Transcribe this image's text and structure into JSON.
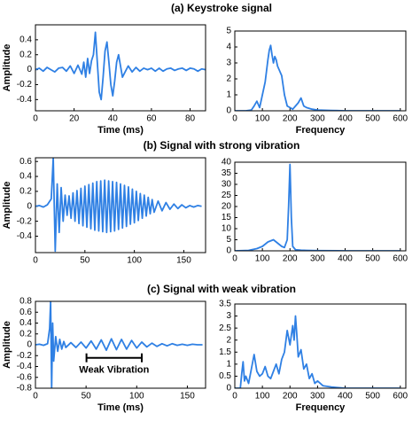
{
  "chart_data": [
    {
      "type": "line",
      "title": "(a) Keystroke signal",
      "xlabel": "Time (ms)",
      "ylabel": "Amplitude",
      "xlim": [
        0,
        88
      ],
      "xticks": [
        0,
        20,
        40,
        60,
        80
      ],
      "ylim": [
        -0.55,
        0.6
      ],
      "yticks": [
        -0.4,
        -0.2,
        0,
        0.2,
        0.4
      ],
      "x": [
        0,
        2,
        4,
        6,
        8,
        10,
        12,
        14,
        16,
        18,
        20,
        22,
        24,
        25,
        26,
        27,
        28,
        29,
        30,
        31,
        32,
        33,
        34,
        35,
        36,
        37,
        38,
        39,
        40,
        41,
        42,
        43,
        44,
        45,
        46,
        48,
        50,
        52,
        54,
        56,
        58,
        60,
        62,
        64,
        66,
        68,
        70,
        72,
        74,
        76,
        78,
        80,
        82,
        84,
        86,
        88
      ],
      "series": [
        {
          "color": "#2f80e4",
          "values": [
            0,
            0.02,
            -0.02,
            0.03,
            0,
            -0.03,
            0.02,
            0.03,
            -0.02,
            0.05,
            -0.05,
            0.06,
            -0.06,
            0.1,
            -0.1,
            0.15,
            -0.05,
            0.12,
            0.2,
            0.5,
            0.1,
            -0.3,
            -0.4,
            -0.1,
            0.25,
            0.37,
            0.1,
            -0.2,
            -0.35,
            -0.15,
            0.1,
            0.2,
            0.05,
            -0.1,
            -0.05,
            0.05,
            -0.03,
            0.03,
            -0.02,
            0.02,
            0,
            0.02,
            -0.02,
            0.02,
            -0.02,
            0.01,
            0.02,
            -0.01,
            0.01,
            0.02,
            -0.01,
            0.02,
            0.01,
            -0.02,
            0.01,
            0
          ]
        }
      ]
    },
    {
      "type": "line",
      "xlabel": "Frequency",
      "xlim": [
        0,
        620
      ],
      "xticks": [
        0,
        100,
        200,
        300,
        400,
        500,
        600
      ],
      "ylim": [
        0,
        5
      ],
      "yticks": [
        0,
        1,
        2,
        3,
        4,
        5
      ],
      "x": [
        0,
        20,
        40,
        60,
        70,
        80,
        90,
        100,
        110,
        115,
        120,
        125,
        130,
        135,
        140,
        145,
        150,
        155,
        160,
        170,
        180,
        190,
        200,
        210,
        220,
        230,
        240,
        250,
        260,
        280,
        300,
        350,
        400,
        450,
        500,
        550,
        600
      ],
      "series": [
        {
          "color": "#2f80e4",
          "values": [
            0,
            0,
            0,
            0.05,
            0.3,
            0.6,
            0.2,
            1.0,
            1.8,
            2.5,
            3.2,
            3.8,
            4.1,
            3.5,
            3.0,
            3.4,
            3.2,
            2.8,
            2.6,
            2.2,
            1.0,
            0.3,
            0.2,
            0.1,
            0.3,
            0.5,
            0.8,
            0.3,
            0.2,
            0.1,
            0.05,
            0.02,
            0,
            0,
            0,
            0,
            0
          ]
        }
      ]
    },
    {
      "type": "line",
      "title": "(b) Signal with strong vibration",
      "ylabel": "Amplitude",
      "xlim": [
        0,
        172
      ],
      "xticks": [
        0,
        50,
        100,
        150
      ],
      "ylim": [
        -0.62,
        0.65
      ],
      "yticks": [
        -0.4,
        -0.2,
        0,
        0.2,
        0.4,
        0.6
      ],
      "x": [
        0,
        4,
        8,
        12,
        16,
        18,
        20,
        22,
        24,
        26,
        28,
        30,
        32,
        34,
        36,
        38,
        40,
        42,
        44,
        46,
        48,
        50,
        52,
        54,
        56,
        58,
        60,
        62,
        64,
        66,
        68,
        70,
        72,
        74,
        76,
        78,
        80,
        82,
        84,
        86,
        88,
        90,
        92,
        94,
        96,
        98,
        100,
        102,
        104,
        106,
        108,
        110,
        112,
        114,
        116,
        118,
        120,
        124,
        128,
        132,
        136,
        140,
        144,
        148,
        152,
        156,
        160,
        164,
        168
      ],
      "series": [
        {
          "color": "#2f80e4",
          "values": [
            0,
            0.01,
            -0.01,
            0.02,
            0.1,
            0.65,
            -0.6,
            0.3,
            -0.35,
            0.25,
            -0.2,
            0.15,
            -0.12,
            0.14,
            -0.16,
            0.18,
            -0.2,
            0.21,
            -0.23,
            0.24,
            -0.26,
            0.27,
            -0.28,
            0.29,
            -0.3,
            0.31,
            -0.32,
            0.33,
            -0.33,
            0.34,
            -0.34,
            0.35,
            -0.35,
            0.34,
            -0.34,
            0.33,
            -0.33,
            0.32,
            -0.31,
            0.3,
            -0.29,
            0.28,
            -0.27,
            0.26,
            -0.24,
            0.23,
            -0.22,
            0.2,
            -0.19,
            0.17,
            -0.16,
            0.15,
            -0.13,
            0.12,
            -0.1,
            0.09,
            -0.08,
            0.07,
            -0.06,
            0.05,
            -0.04,
            0.03,
            -0.03,
            0.02,
            -0.02,
            0.01,
            -0.01,
            0.01,
            0
          ]
        }
      ]
    },
    {
      "type": "line",
      "xlim": [
        0,
        620
      ],
      "xticks": [
        0,
        100,
        200,
        300,
        400,
        500,
        600
      ],
      "ylim": [
        0,
        40
      ],
      "yticks": [
        0,
        5,
        10,
        15,
        20,
        25,
        30,
        35,
        40
      ],
      "x": [
        0,
        50,
        80,
        100,
        110,
        120,
        130,
        140,
        150,
        160,
        170,
        180,
        190,
        195,
        200,
        205,
        210,
        220,
        240,
        260,
        300,
        400,
        500,
        600
      ],
      "series": [
        {
          "color": "#2f80e4",
          "values": [
            0,
            0.2,
            1,
            2,
            3,
            4,
            4.5,
            5,
            4,
            3,
            2,
            1.5,
            5,
            20,
            39,
            15,
            2,
            0.5,
            0.3,
            0.2,
            0.1,
            0,
            0,
            0
          ]
        }
      ]
    },
    {
      "type": "line",
      "title": "(c) Signal with weak vibration",
      "xlabel": "Time (ms)",
      "ylabel": "Amplitude",
      "annotation": "Weak Vibration",
      "xlim": [
        0,
        168
      ],
      "xticks": [
        0,
        50,
        100,
        150
      ],
      "ylim": [
        -0.8,
        0.8
      ],
      "yticks": [
        -0.8,
        -0.6,
        -0.4,
        -0.2,
        0,
        0.2,
        0.4,
        0.6,
        0.8
      ],
      "x": [
        0,
        4,
        8,
        12,
        14,
        15,
        16,
        17,
        18,
        20,
        22,
        24,
        26,
        28,
        30,
        35,
        40,
        45,
        50,
        55,
        60,
        65,
        70,
        75,
        80,
        85,
        90,
        95,
        100,
        105,
        110,
        115,
        120,
        125,
        130,
        135,
        140,
        145,
        150,
        155,
        160,
        165
      ],
      "series": [
        {
          "color": "#2f80e4",
          "values": [
            0,
            0.01,
            -0.01,
            0.02,
            0.3,
            0.8,
            -0.8,
            0.4,
            -0.3,
            0.15,
            -0.12,
            0.1,
            -0.08,
            0.06,
            -0.05,
            0.04,
            -0.05,
            0.05,
            -0.06,
            0.07,
            -0.08,
            0.09,
            -0.1,
            0.11,
            -0.09,
            0.1,
            -0.08,
            0.08,
            -0.06,
            0.05,
            -0.04,
            0.03,
            -0.03,
            0.02,
            -0.02,
            0.02,
            -0.01,
            0.01,
            -0.01,
            0.01,
            0,
            0
          ]
        }
      ]
    },
    {
      "type": "line",
      "xlabel": "Frequency",
      "xlim": [
        0,
        620
      ],
      "xticks": [
        0,
        100,
        200,
        300,
        400,
        500,
        600
      ],
      "ylim": [
        0,
        3.5
      ],
      "yticks": [
        0,
        0.5,
        1,
        1.5,
        2,
        2.5,
        3,
        3.5
      ],
      "x": [
        0,
        20,
        25,
        30,
        35,
        40,
        50,
        60,
        70,
        80,
        90,
        100,
        110,
        120,
        130,
        140,
        150,
        160,
        170,
        180,
        190,
        200,
        210,
        215,
        220,
        225,
        230,
        240,
        250,
        260,
        270,
        280,
        290,
        300,
        320,
        350,
        400,
        500,
        600
      ],
      "series": [
        {
          "color": "#2f80e4",
          "values": [
            0,
            0,
            0.6,
            1.1,
            0.3,
            0.5,
            0.2,
            0.8,
            1.4,
            0.7,
            0.5,
            0.6,
            0.9,
            0.5,
            0.4,
            0.7,
            1.0,
            0.6,
            1.2,
            1.5,
            2.4,
            1.8,
            2.6,
            2.0,
            3.0,
            2.2,
            1.3,
            1.6,
            0.8,
            1.0,
            0.4,
            0.6,
            0.2,
            0.3,
            0.1,
            0.05,
            0,
            0,
            0
          ]
        }
      ]
    }
  ]
}
